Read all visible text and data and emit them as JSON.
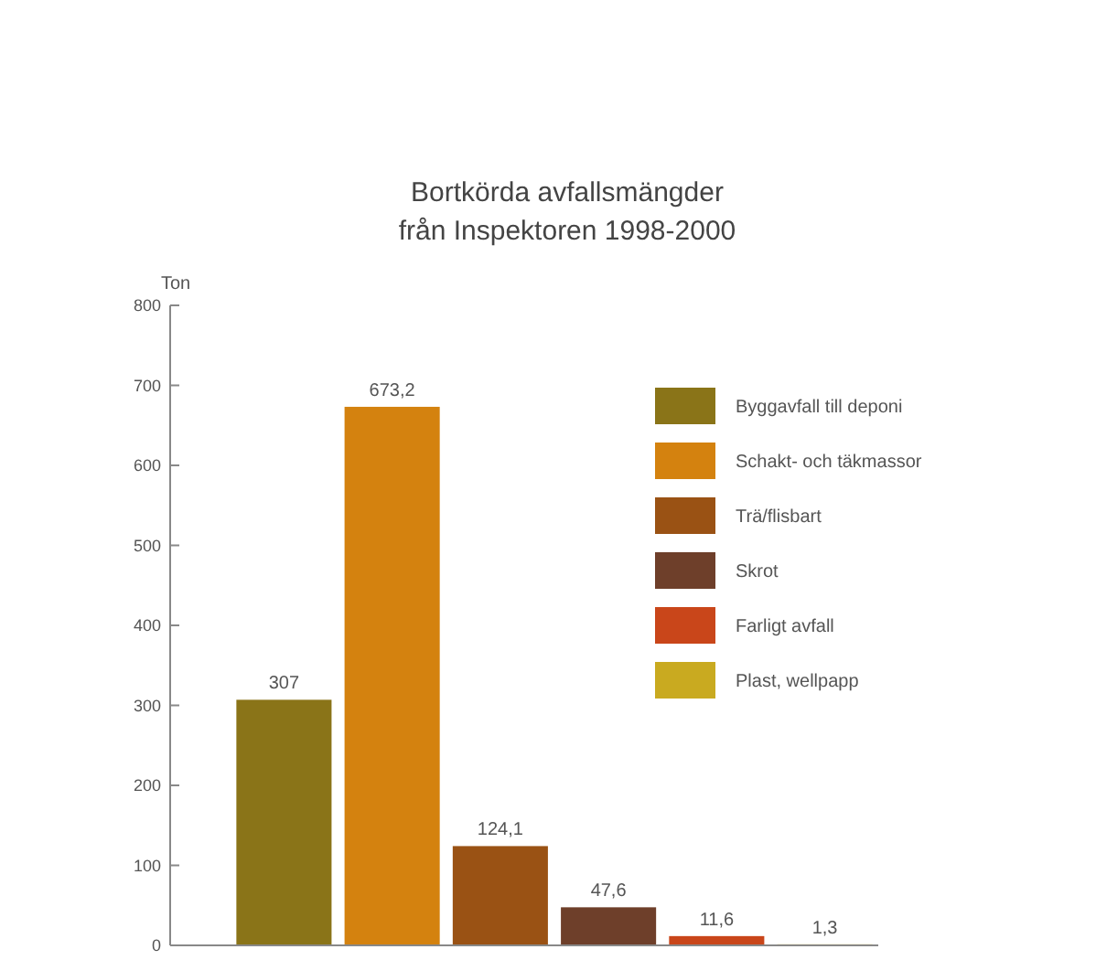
{
  "chart_data": {
    "type": "bar",
    "title": "Bortkörda avfallsmängder\nfrån Inspektoren 1998-2000",
    "ylabel": "Ton",
    "categories": [
      null,
      null,
      null,
      null,
      null,
      null
    ],
    "series": [
      {
        "name": "Byggavfall till deponi",
        "color": "#8a7418",
        "values": [
          307,
          null,
          null,
          null,
          null,
          null
        ],
        "value_labels": [
          "307",
          null,
          null,
          null,
          null,
          null
        ]
      },
      {
        "name": "Schakt- och täkmassor",
        "color": "#d4820f",
        "values": [
          null,
          673.2,
          null,
          null,
          null,
          null
        ],
        "value_labels": [
          null,
          "673,2",
          null,
          null,
          null,
          null
        ]
      },
      {
        "name": "Trä/flisbart",
        "color": "#9a5214",
        "values": [
          null,
          null,
          124.1,
          null,
          null,
          null
        ],
        "value_labels": [
          null,
          null,
          "124,1",
          null,
          null,
          null
        ]
      },
      {
        "name": "Skrot",
        "color": "#6e3f2a",
        "values": [
          null,
          null,
          null,
          47.6,
          null,
          null
        ],
        "value_labels": [
          null,
          null,
          null,
          "47,6",
          null,
          null
        ]
      },
      {
        "name": "Farligt avfall",
        "color": "#c9461a",
        "values": [
          null,
          null,
          null,
          null,
          11.6,
          null
        ],
        "value_labels": [
          null,
          null,
          null,
          null,
          "11,6",
          null
        ]
      },
      {
        "name": "Plast, wellpapp",
        "color": "#c9aa20",
        "values": [
          null,
          null,
          null,
          null,
          null,
          1.3
        ],
        "value_labels": [
          null,
          null,
          null,
          null,
          null,
          "1,3"
        ]
      }
    ],
    "ylim": [
      0,
      800
    ],
    "yticks": [
      0,
      100,
      200,
      300,
      400,
      500,
      600,
      700,
      800
    ],
    "grid": false,
    "legend": "right"
  }
}
